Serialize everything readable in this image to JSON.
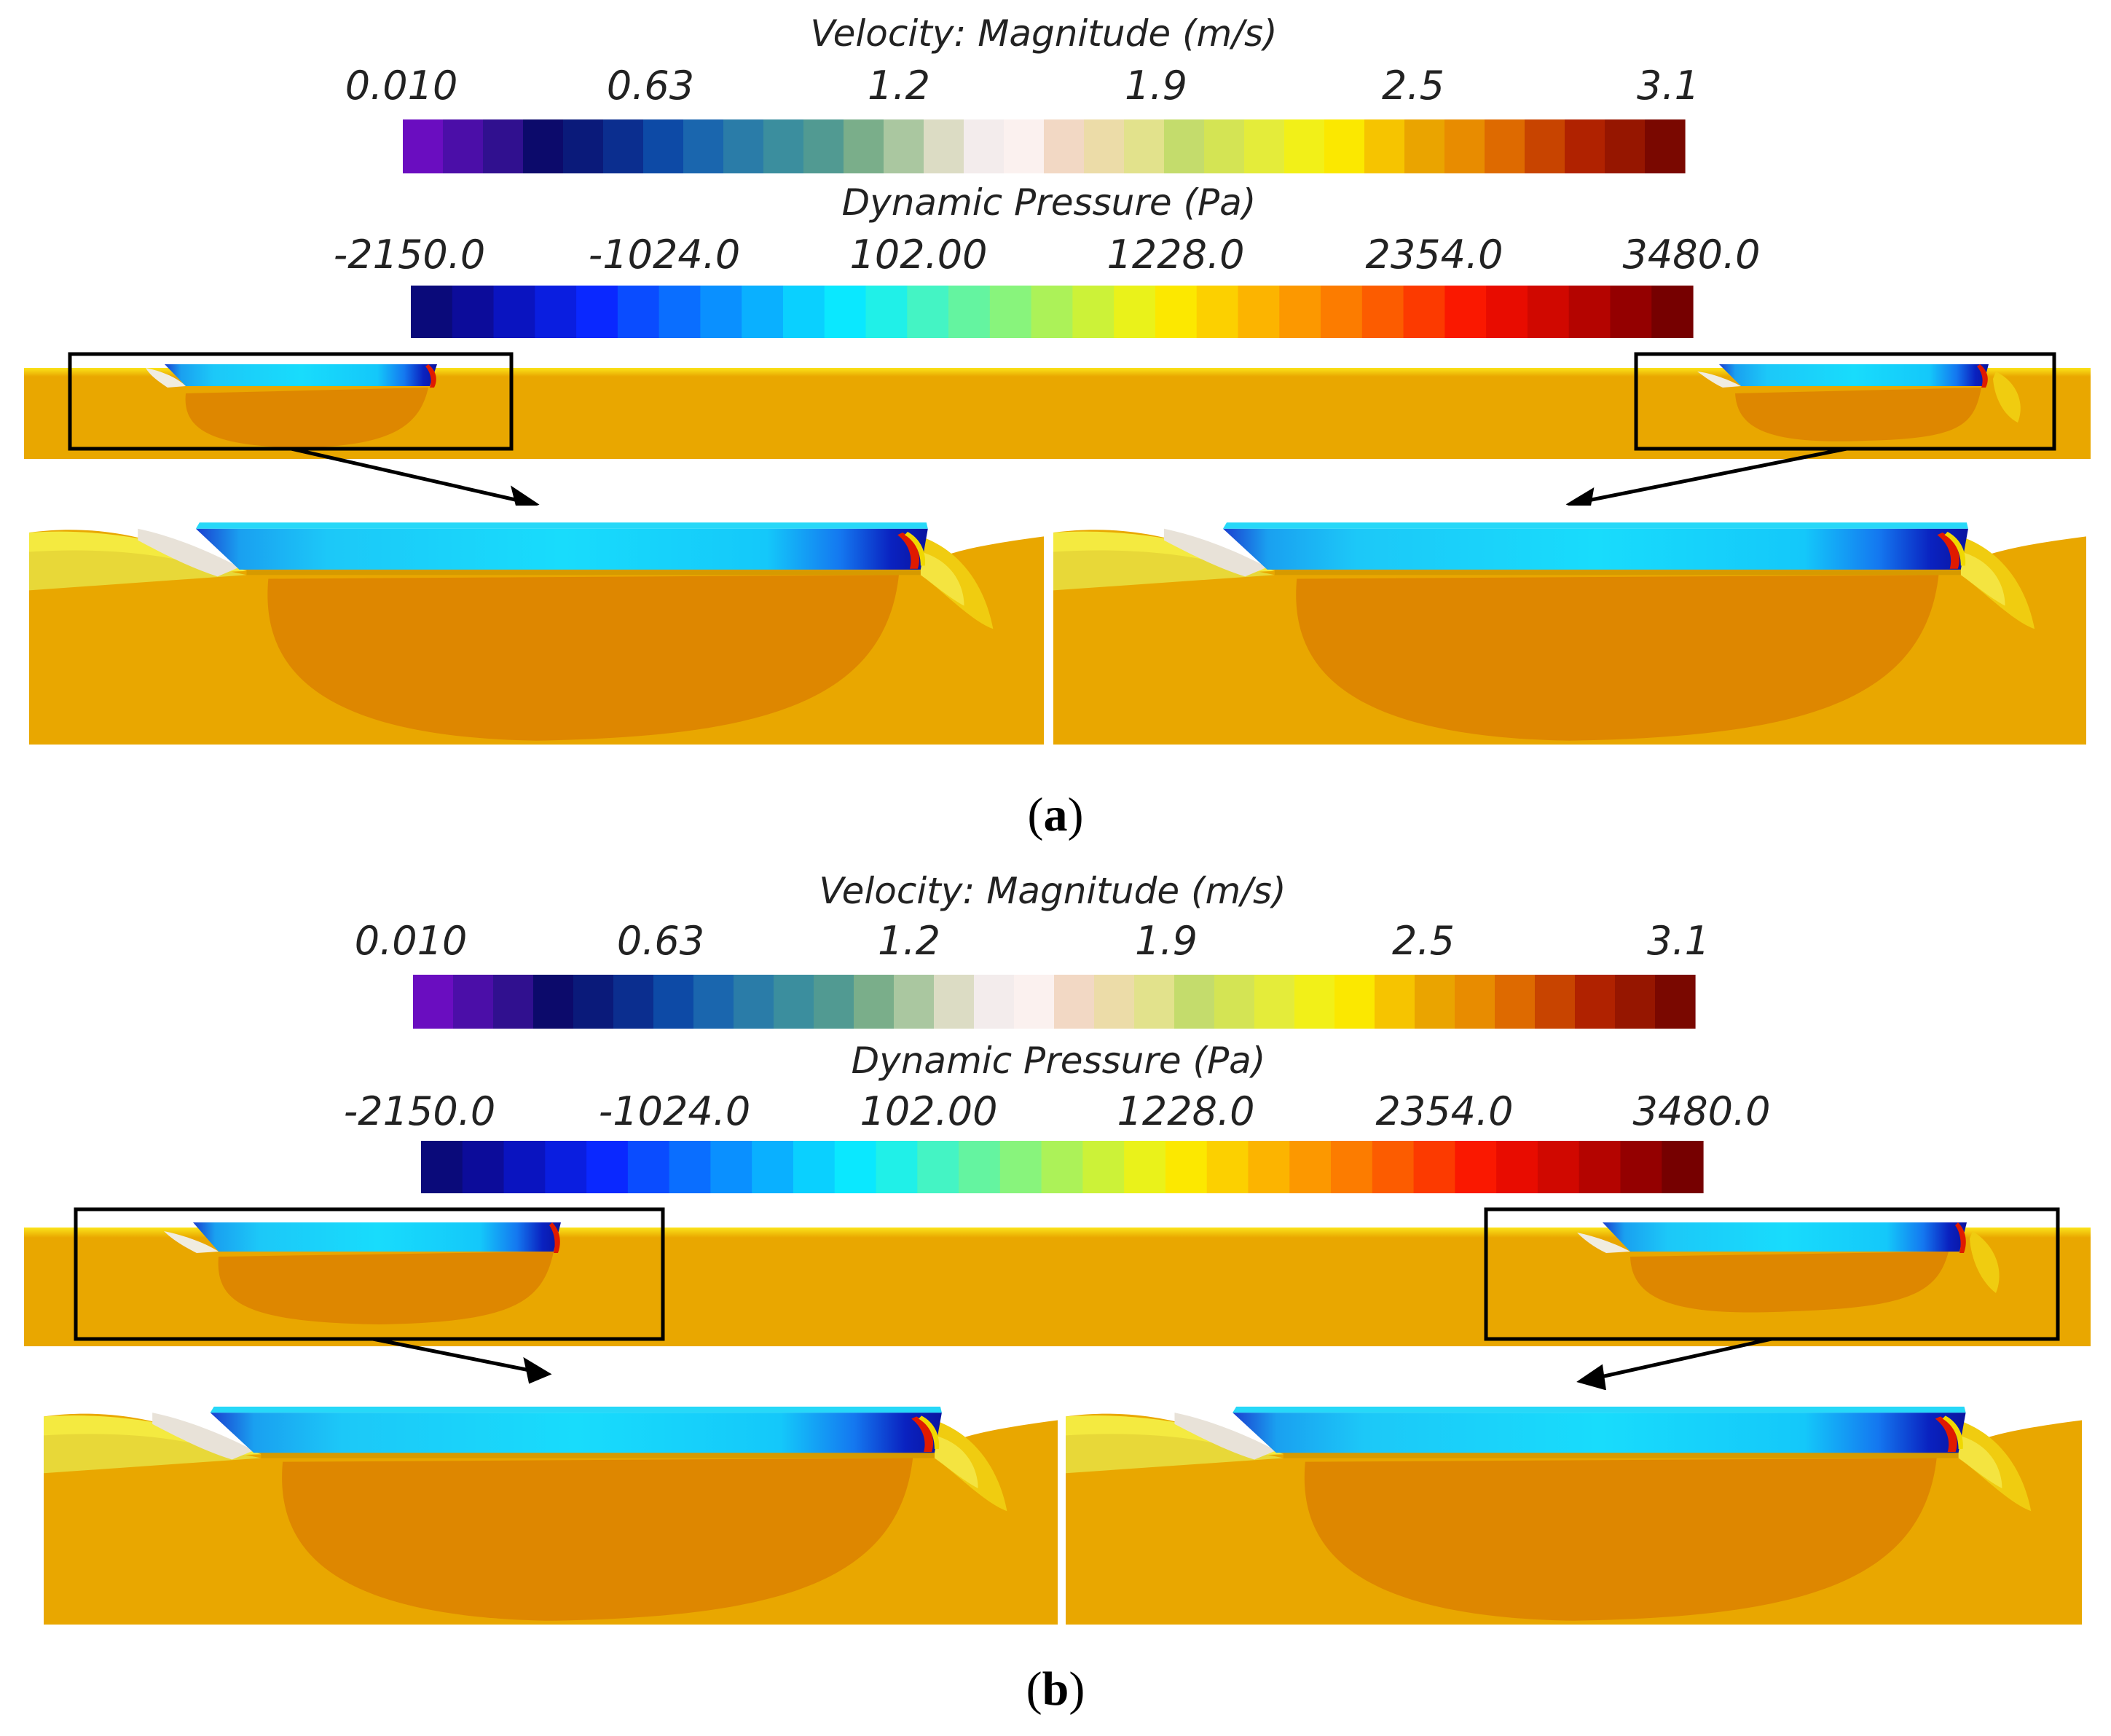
{
  "panels": [
    {
      "label_open": "(",
      "label_letter": "a",
      "label_close": ")",
      "velocity": {
        "title": "Velocity: Magnitude (m/s)",
        "ticks": [
          "0.010",
          "0.63",
          "1.2",
          "1.9",
          "2.5",
          "3.1"
        ]
      },
      "pressure": {
        "title": "Dynamic Pressure (Pa)",
        "ticks": [
          "-2150.0",
          "-1024.0",
          "102.00",
          "1228.0",
          "2354.0",
          "3480.0"
        ]
      }
    },
    {
      "label_open": "(",
      "label_letter": "b",
      "label_close": ")",
      "velocity": {
        "title": "Velocity: Magnitude (m/s)",
        "ticks": [
          "0.010",
          "0.63",
          "1.2",
          "1.9",
          "2.5",
          "3.1"
        ]
      },
      "pressure": {
        "title": "Dynamic Pressure (Pa)",
        "ticks": [
          "-2150.0",
          "-1024.0",
          "102.00",
          "1228.0",
          "2354.0",
          "3480.0"
        ]
      }
    }
  ],
  "colormaps": {
    "velocity": [
      "#6a0dc0",
      "#4b0ea8",
      "#30108f",
      "#0c0a6b",
      "#0a1a7a",
      "#0b2e8f",
      "#0d4aa6",
      "#1a66ae",
      "#2a7ca8",
      "#3b8e9e",
      "#519a92",
      "#7aae8a",
      "#aac7a0",
      "#dcdcc4",
      "#f3ecec",
      "#fbf1ef",
      "#f2d8c4",
      "#ecdca8",
      "#e2e28c",
      "#c4dc6c",
      "#d4e454",
      "#e4ec3a",
      "#f2f018",
      "#fbe800",
      "#f6c400",
      "#eaa400",
      "#e88c00",
      "#de6a00",
      "#c84400",
      "#b02200",
      "#961600",
      "#7a0800"
    ],
    "pressure": [
      "#0a0a7a",
      "#0c0c9a",
      "#0a14c0",
      "#0a1ee0",
      "#0a28ff",
      "#0a4cff",
      "#0a6eff",
      "#0a90ff",
      "#0ab0ff",
      "#0ad0ff",
      "#0ae8ff",
      "#20f0e8",
      "#44f4c4",
      "#64f4a0",
      "#88f47c",
      "#acf258",
      "#ccf238",
      "#eaf21a",
      "#fce800",
      "#fcd000",
      "#fcb400",
      "#fc9800",
      "#fc7c00",
      "#fc5c00",
      "#fc3a00",
      "#fa1800",
      "#e80c00",
      "#d00800",
      "#b40400",
      "#940000",
      "#760000"
    ]
  }
}
